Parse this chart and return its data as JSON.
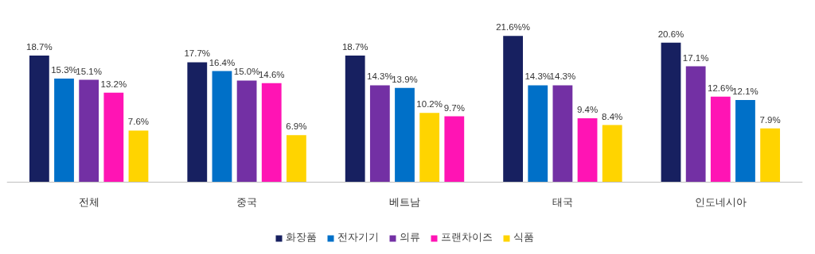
{
  "chart_data": {
    "type": "bar",
    "categories": [
      "전체",
      "중국",
      "베트남",
      "태국",
      "인도네시아"
    ],
    "series": [
      {
        "name": "화장품",
        "color": "#172060",
        "values": [
          18.7,
          17.7,
          18.7,
          21.6,
          20.6
        ],
        "value_labels": [
          "18.7%",
          "17.7%",
          "18.7%",
          "21.6%%",
          "20.6%"
        ]
      },
      {
        "name": "전자기기",
        "color": "#0070c8",
        "values": [
          15.3,
          16.4,
          13.9,
          14.3,
          12.1
        ],
        "value_labels": [
          "15.3%",
          "16.4%",
          "13.9%",
          "14.3%",
          "12.1%"
        ]
      },
      {
        "name": "의류",
        "color": "#7330a4",
        "values": [
          15.1,
          15.0,
          14.3,
          14.3,
          17.1
        ],
        "value_labels": [
          "15.1%",
          "15.0%",
          "14.3%",
          "14.3%",
          "17.1%"
        ]
      },
      {
        "name": "프랜차이즈",
        "color": "#ff14b4",
        "values": [
          13.2,
          14.6,
          9.7,
          9.4,
          12.6
        ],
        "value_labels": [
          "13.2%",
          "14.6%",
          "9.7%",
          "9.4%",
          "12.6%"
        ]
      },
      {
        "name": "식품",
        "color": "#ffd400",
        "values": [
          7.6,
          6.9,
          10.2,
          8.4,
          7.9
        ],
        "value_labels": [
          "7.6%",
          "6.9%",
          "10.2%",
          "8.4%",
          "7.9%"
        ]
      }
    ],
    "legend": "bottom",
    "grid": false
  }
}
